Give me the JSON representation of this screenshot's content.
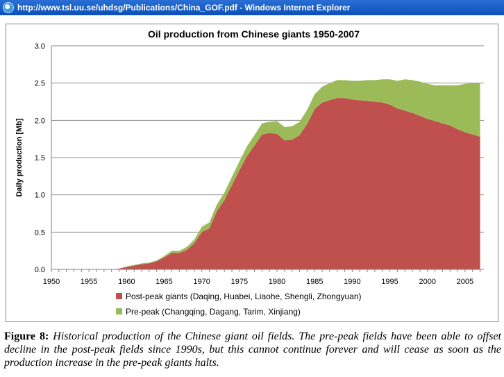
{
  "window": {
    "title": "http://www.tsl.uu.se/uhdsg/Publications/China_GOF.pdf - Windows Internet Explorer",
    "icon": "ie-icon"
  },
  "caption": {
    "label": "Figure 8:",
    "text": "Historical production of the Chinese giant oil fields. The pre-peak fields have been able to offset decline in the post-peak fields since 1990s, but this cannot continue forever and will cease as soon as the production increase in the pre-peak giants halts."
  },
  "chart_data": {
    "type": "area",
    "stacked": true,
    "title": "Oil production from Chinese giants 1950-2007",
    "xlabel": "",
    "ylabel": "Daily production [Mb]",
    "xlim": [
      1950,
      2007
    ],
    "ylim": [
      0,
      3.0
    ],
    "x_ticks": [
      1950,
      1955,
      1960,
      1965,
      1970,
      1975,
      1980,
      1985,
      1990,
      1995,
      2000,
      2005
    ],
    "y_ticks": [
      "0.0",
      "0.5",
      "1.0",
      "1.5",
      "2.0",
      "2.5",
      "3.0"
    ],
    "grid": "horizontal",
    "legend_position": "bottom",
    "x": [
      1950,
      1951,
      1952,
      1953,
      1954,
      1955,
      1956,
      1957,
      1958,
      1959,
      1960,
      1961,
      1962,
      1963,
      1964,
      1965,
      1966,
      1967,
      1968,
      1969,
      1970,
      1971,
      1972,
      1973,
      1974,
      1975,
      1976,
      1977,
      1978,
      1979,
      1980,
      1981,
      1982,
      1983,
      1984,
      1985,
      1986,
      1987,
      1988,
      1989,
      1990,
      1991,
      1992,
      1993,
      1994,
      1995,
      1996,
      1997,
      1998,
      1999,
      2000,
      2001,
      2002,
      2003,
      2004,
      2005,
      2006,
      2007
    ],
    "series": [
      {
        "name": "Post-peak giants (Daqing, Huabei, Liaohe, Shengli, Zhongyuan)",
        "color": "#c0504d",
        "values": [
          0,
          0,
          0,
          0,
          0,
          0,
          0,
          0,
          0,
          0.01,
          0.03,
          0.05,
          0.07,
          0.08,
          0.11,
          0.16,
          0.22,
          0.22,
          0.26,
          0.35,
          0.5,
          0.55,
          0.78,
          0.93,
          1.13,
          1.33,
          1.52,
          1.66,
          1.81,
          1.83,
          1.82,
          1.73,
          1.74,
          1.8,
          1.95,
          2.15,
          2.24,
          2.27,
          2.3,
          2.3,
          2.28,
          2.27,
          2.26,
          2.25,
          2.24,
          2.21,
          2.16,
          2.13,
          2.1,
          2.06,
          2.02,
          1.99,
          1.96,
          1.93,
          1.88,
          1.84,
          1.81,
          1.78
        ]
      },
      {
        "name": "Pre-peak (Changqing, Dagang, Tarim, Xinjiang)",
        "color": "#9bbb59",
        "values": [
          0,
          0,
          0,
          0,
          0,
          0,
          0,
          0,
          0,
          0,
          0.01,
          0.01,
          0.01,
          0.01,
          0.01,
          0.02,
          0.03,
          0.03,
          0.04,
          0.05,
          0.07,
          0.08,
          0.09,
          0.1,
          0.11,
          0.12,
          0.13,
          0.14,
          0.15,
          0.15,
          0.17,
          0.18,
          0.18,
          0.18,
          0.19,
          0.2,
          0.21,
          0.23,
          0.24,
          0.24,
          0.25,
          0.26,
          0.28,
          0.29,
          0.31,
          0.34,
          0.37,
          0.42,
          0.44,
          0.46,
          0.47,
          0.48,
          0.51,
          0.54,
          0.59,
          0.65,
          0.69,
          0.72
        ]
      }
    ]
  }
}
